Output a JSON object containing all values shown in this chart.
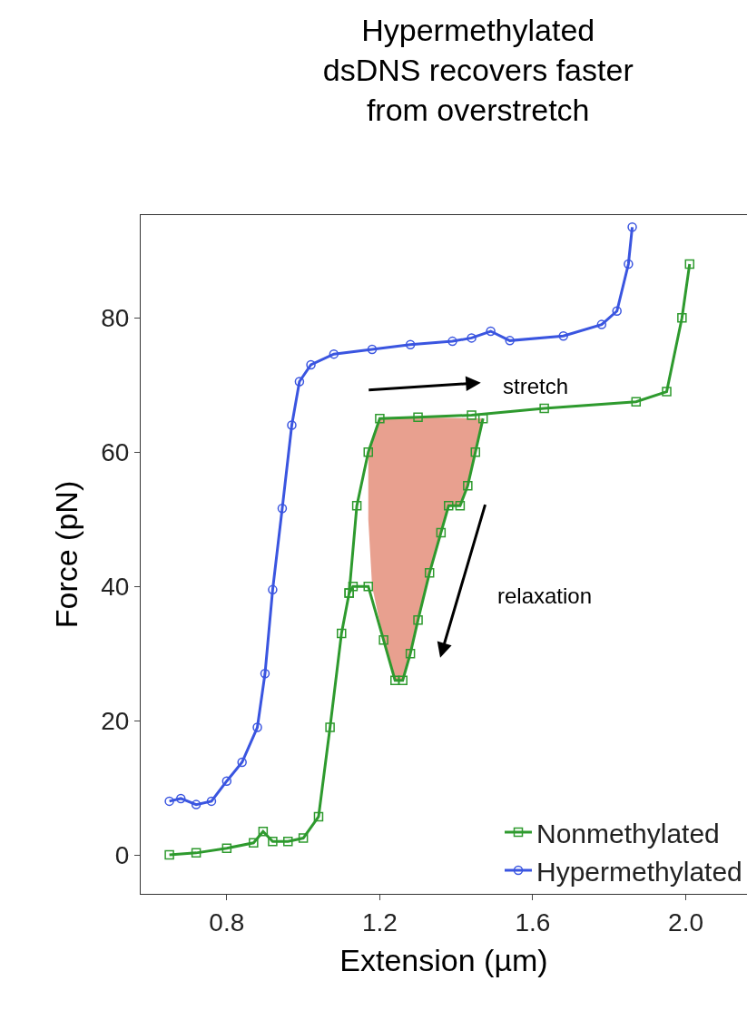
{
  "chart_data": {
    "type": "line",
    "title": "Hypermethylated\ndsDNS recovers faster\nfrom overstretch",
    "xlabel": "Extension (µm)",
    "ylabel": "Force (pN)",
    "xlim": [
      0.575,
      2.16
    ],
    "ylim": [
      -5.8,
      95.3
    ],
    "xticks": [
      0.8,
      1.2,
      1.6,
      {
        "value": 2.0,
        "label": "2.0"
      }
    ],
    "yticks": [
      0,
      20,
      40,
      60,
      80
    ],
    "legend": "bottom right",
    "series": [
      {
        "type": "area",
        "color": "#e8a08f",
        "x": [
          1.17,
          1.2,
          1.3,
          1.47,
          1.45,
          1.43,
          1.41,
          1.38,
          1.36,
          1.33,
          1.3,
          1.28,
          1.26,
          1.24,
          1.21,
          1.18,
          1.17
        ],
        "values": [
          60,
          65,
          65.2,
          65,
          60,
          55,
          52,
          52,
          48,
          42,
          35,
          30,
          26,
          26,
          32,
          40,
          50
        ]
      },
      {
        "name": "Nonmethylated",
        "color": "#2e9a2e",
        "marker": "square",
        "x": [
          0.65,
          0.72,
          0.8,
          0.87,
          0.895,
          0.92,
          0.96,
          1.0,
          1.04,
          1.07,
          1.1,
          1.12,
          1.14,
          1.17,
          1.2,
          1.3,
          1.44,
          1.63,
          1.87,
          1.95,
          1.99,
          2.01,
          null,
          1.47,
          1.45,
          1.43,
          1.41,
          1.38,
          1.36,
          1.33,
          1.3,
          1.28,
          1.26,
          1.24,
          1.21,
          1.17,
          1.13,
          1.12
        ],
        "values": [
          0,
          0.3,
          1,
          1.8,
          3.5,
          2,
          2,
          2.5,
          5.7,
          19,
          33,
          39,
          52,
          60,
          65,
          65.2,
          65.5,
          66.5,
          67.5,
          69,
          80,
          88,
          null,
          65,
          60,
          55,
          52,
          52,
          48,
          42,
          35,
          30,
          26,
          26,
          32,
          40,
          40,
          39
        ]
      },
      {
        "name": "Hypermethylated",
        "color": "#3a55e0",
        "marker": "circle",
        "x": [
          0.65,
          0.68,
          0.72,
          0.76,
          0.8,
          0.84,
          0.88,
          0.9,
          0.92,
          0.945,
          0.97,
          0.99,
          1.02,
          1.08,
          1.18,
          1.28,
          1.39,
          1.44,
          1.49,
          1.54,
          1.68,
          1.78,
          1.82,
          1.85,
          1.86
        ],
        "values": [
          8,
          8.4,
          7.5,
          8,
          11,
          13.8,
          19,
          27,
          39.5,
          51.6,
          64,
          70.5,
          73,
          74.6,
          75.3,
          76,
          76.5,
          77,
          78,
          76.6,
          77.3,
          79,
          81,
          88,
          93.5
        ]
      }
    ],
    "annotations": [
      "stretch",
      "relaxation"
    ]
  }
}
